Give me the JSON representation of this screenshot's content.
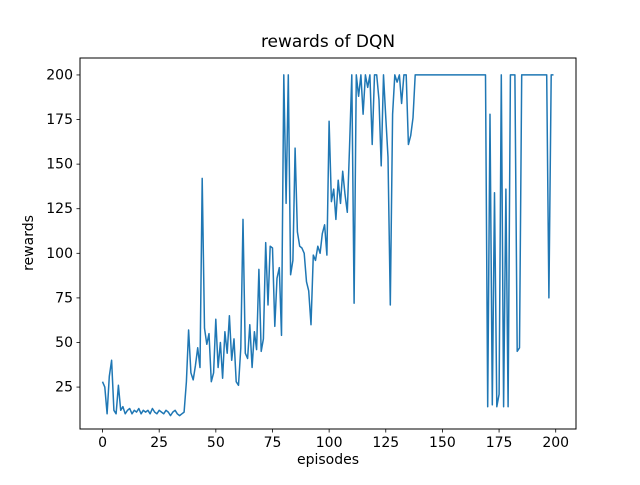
{
  "figure": {
    "window_background": "#ffffff"
  },
  "chart_data": {
    "type": "line",
    "title": "rewards of DQN",
    "xlabel": "episodes",
    "ylabel": "rewards",
    "x_values": "consecutive episode indices 0-199",
    "values": [
      28,
      25,
      10,
      31,
      40,
      12,
      10,
      26,
      12,
      14,
      10,
      12,
      13,
      10,
      12,
      11,
      13,
      10,
      12,
      11,
      12,
      10,
      13,
      11,
      10,
      12,
      11,
      10,
      12,
      11,
      9,
      11,
      12,
      10,
      9,
      10,
      11,
      28,
      57,
      33,
      29,
      37,
      47,
      36,
      142,
      58,
      49,
      55,
      28,
      33,
      63,
      36,
      50,
      30,
      56,
      44,
      65,
      40,
      52,
      28,
      26,
      47,
      119,
      44,
      41,
      60,
      36,
      56,
      46,
      91,
      45,
      52,
      106,
      71,
      104,
      103,
      59,
      86,
      92,
      54,
      200,
      128,
      200,
      88,
      96,
      159,
      112,
      104,
      103,
      100,
      84,
      79,
      60,
      99,
      96,
      104,
      100,
      111,
      116,
      99,
      174,
      129,
      136,
      119,
      141,
      128,
      146,
      133,
      123,
      159,
      200,
      72,
      200,
      188,
      200,
      178,
      200,
      193,
      200,
      161,
      200,
      200,
      186,
      149,
      200,
      176,
      154,
      71,
      178,
      200,
      196,
      200,
      184,
      200,
      200,
      161,
      166,
      176,
      200,
      200,
      200,
      200,
      200,
      200,
      200,
      200,
      200,
      200,
      200,
      200,
      200,
      200,
      200,
      200,
      200,
      200,
      200,
      200,
      200,
      200,
      200,
      200,
      200,
      200,
      200,
      200,
      200,
      200,
      200,
      200,
      14,
      178,
      15,
      134,
      14,
      21,
      200,
      14,
      136,
      14,
      200,
      200,
      200,
      45,
      47,
      200,
      200,
      200,
      200,
      200,
      200,
      200,
      200,
      200,
      200,
      200,
      200,
      75,
      200,
      200
    ],
    "xticks": [
      0,
      25,
      50,
      75,
      100,
      125,
      150,
      175,
      200
    ],
    "yticks": [
      25,
      50,
      75,
      100,
      125,
      150,
      175,
      200
    ],
    "xlim": [
      -9.95,
      208.95
    ],
    "ylim": [
      1.5,
      209.5
    ],
    "line_color": "#1f77b4",
    "grid": false,
    "legend_position": "none"
  }
}
